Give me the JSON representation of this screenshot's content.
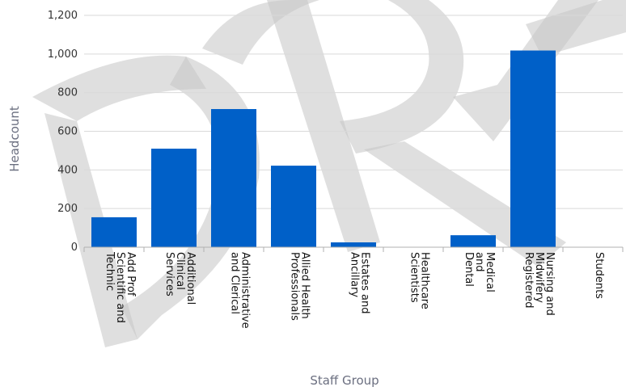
{
  "chart_data": {
    "type": "bar",
    "xlabel": "Staff Group",
    "ylabel": "Headcount",
    "ylim": [
      0,
      1200
    ],
    "yticks": [
      0,
      200,
      400,
      600,
      800,
      1000,
      1200
    ],
    "ytick_labels": [
      "0",
      "200",
      "400",
      "600",
      "800",
      "1,000",
      "1,200"
    ],
    "grid": true,
    "legend": "none",
    "bar_color": "#0060c8",
    "categories": [
      [
        "Add Prof",
        "Scientific and",
        "Technic"
      ],
      [
        "Additional",
        "Clinical",
        "Services"
      ],
      [
        "Administrative",
        "and Clerical"
      ],
      [
        "Allied Health",
        "Professionals"
      ],
      [
        "Estates and",
        "Ancillary"
      ],
      [
        "Healthcare",
        "Scientists"
      ],
      [
        "Medical",
        "and",
        "Dental"
      ],
      [
        "Nursing and",
        "Midwifery",
        "Registered"
      ],
      [
        "Students"
      ]
    ],
    "values": [
      155,
      510,
      715,
      422,
      25,
      0,
      62,
      1018,
      0
    ]
  },
  "watermark": {
    "text": "DRAFT"
  }
}
